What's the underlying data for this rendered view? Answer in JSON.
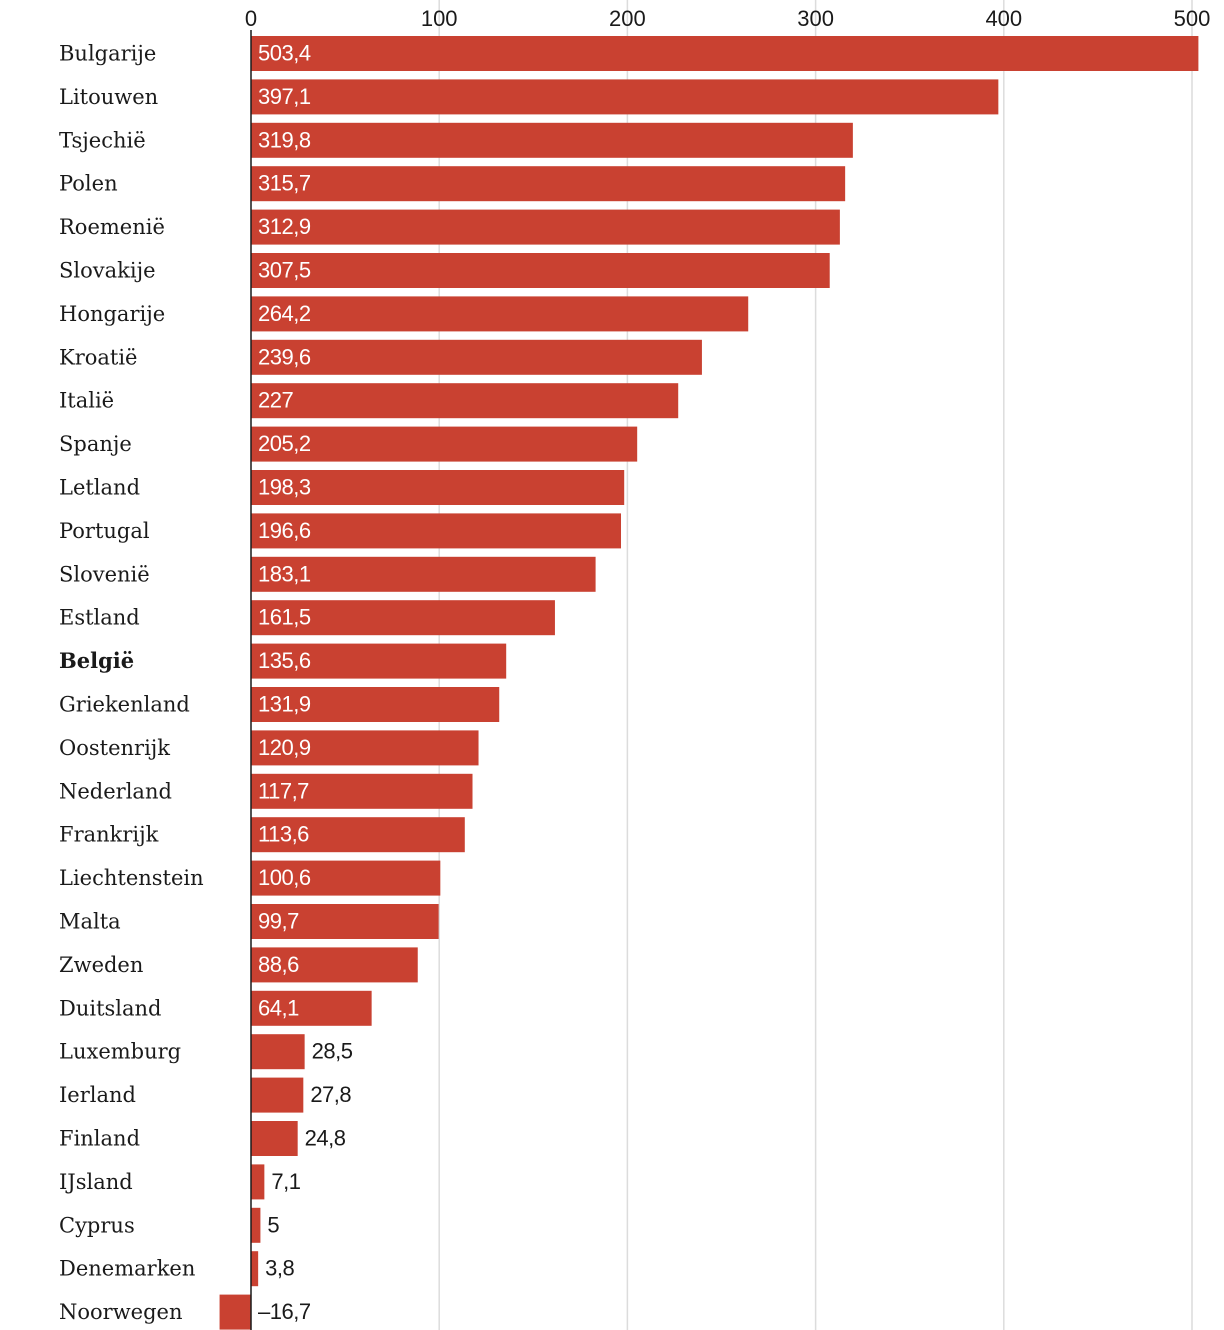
{
  "chart_data": {
    "type": "bar",
    "orientation": "horizontal",
    "categories": [
      "Bulgarije",
      "Litouwen",
      "Tsjechië",
      "Polen",
      "Roemenië",
      "Slovakije",
      "Hongarije",
      "Kroatië",
      "Italië",
      "Spanje",
      "Letland",
      "Portugal",
      "Slovenië",
      "Estland",
      "België",
      "Griekenland",
      "Oostenrijk",
      "Nederland",
      "Frankrijk",
      "Liechtenstein",
      "Malta",
      "Zweden",
      "Duitsland",
      "Luxemburg",
      "Ierland",
      "Finland",
      "IJsland",
      "Cyprus",
      "Denemarken",
      "Noorwegen"
    ],
    "values": [
      503.4,
      397.1,
      319.8,
      315.7,
      312.9,
      307.5,
      264.2,
      239.6,
      227,
      205.2,
      198.3,
      196.6,
      183.1,
      161.5,
      135.6,
      131.9,
      120.9,
      117.7,
      113.6,
      100.6,
      99.7,
      88.6,
      64.1,
      28.5,
      27.8,
      24.8,
      7.1,
      5,
      3.8,
      -16.7
    ],
    "value_labels": [
      "503,4",
      "397,1",
      "319,8",
      "315,7",
      "312,9",
      "307,5",
      "264,2",
      "239,6",
      "227",
      "205,2",
      "198,3",
      "196,6",
      "183,1",
      "161,5",
      "135,6",
      "131,9",
      "120,9",
      "117,7",
      "113,6",
      "100,6",
      "99,7",
      "88,6",
      "64,1",
      "28,5",
      "27,8",
      "24,8",
      "7,1",
      "5",
      "3,8",
      "–16,7"
    ],
    "highlighted_category": "België",
    "xticks": [
      0,
      100,
      200,
      300,
      400,
      500
    ],
    "xlim": [
      -17.5,
      503.4
    ],
    "title": "",
    "xlabel": "",
    "ylabel": "",
    "grid": true,
    "axis_position": "top",
    "bar_color": "#c94131"
  }
}
